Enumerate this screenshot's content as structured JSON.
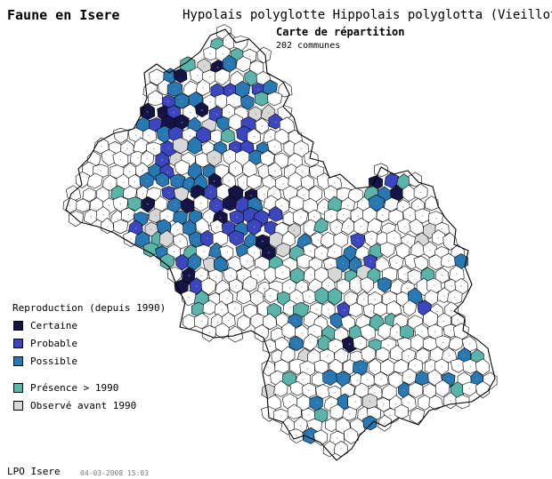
{
  "header": {
    "site_title": "Faune en Isere",
    "species_title": "Hypolais polyglotte  Hippolais polyglotta (Vieillot)",
    "map_title": "Carte de répartition",
    "map_subtitle": "202 communes"
  },
  "legend": {
    "heading": "Reproduction (depuis 1990)",
    "items": [
      {
        "label": "Certaine",
        "color": "#141446"
      },
      {
        "label": "Probable",
        "color": "#3c46be"
      },
      {
        "label": "Possible",
        "color": "#2878b4"
      },
      {
        "label": "Présence > 1990",
        "color": "#5ab4aa"
      },
      {
        "label": "Observé avant 1990",
        "color": "#d7d7d7"
      }
    ]
  },
  "footer": {
    "credit": "LPO Isere",
    "date": "04-03-2008 15:03"
  }
}
